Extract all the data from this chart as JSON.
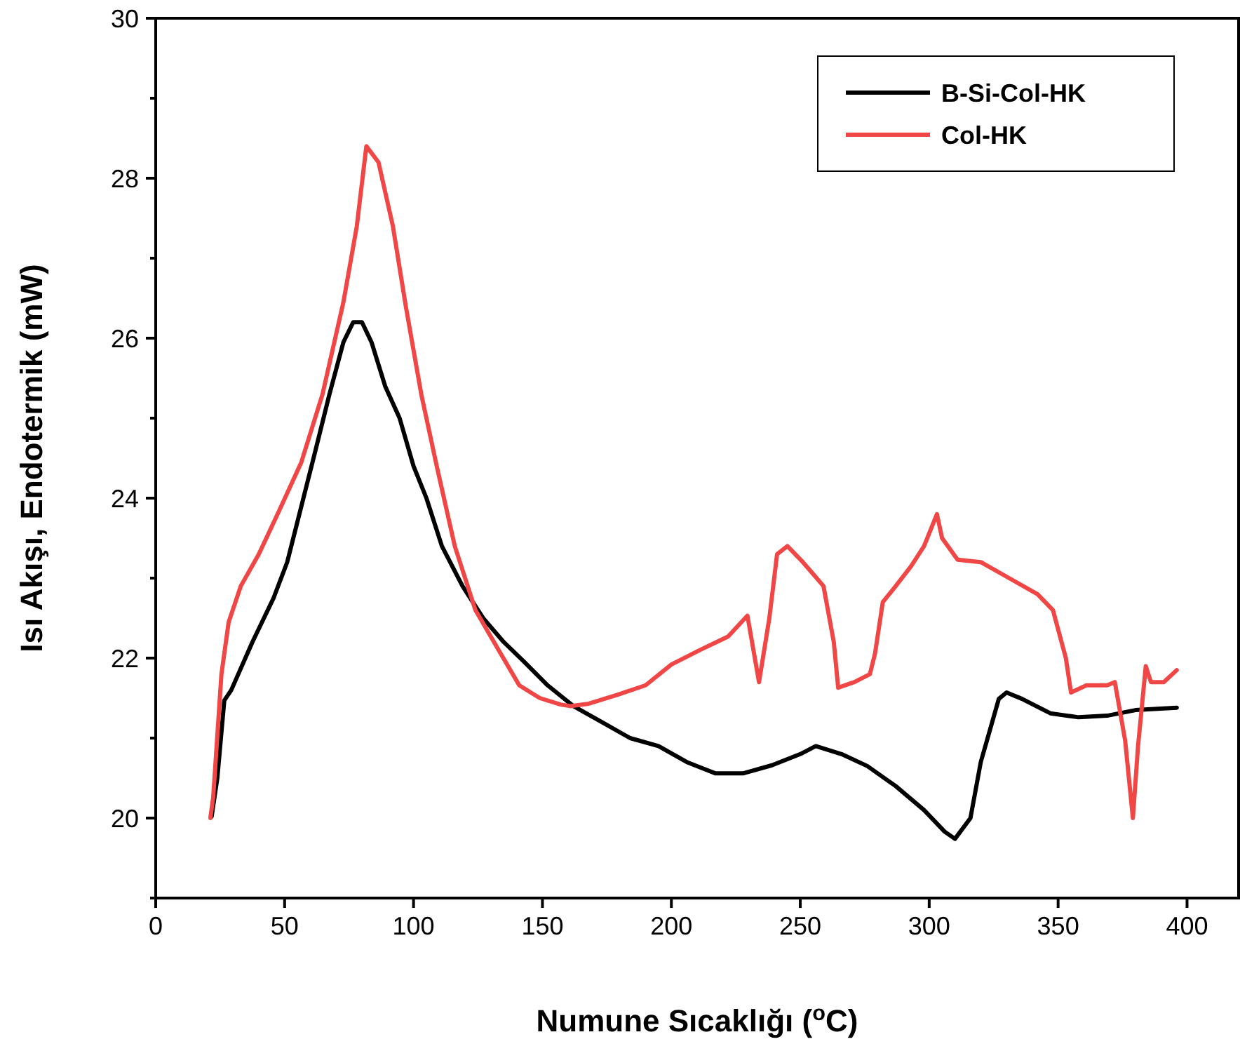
{
  "chart_data": {
    "type": "line",
    "xlabel": "Numune Sıcaklığı ($^{o}$C)",
    "ylabel": "Isı Akışı, Endotermik (mW)",
    "xlim": [
      0,
      420
    ],
    "xticks": [
      0,
      50,
      100,
      150,
      200,
      250,
      300,
      350,
      400
    ],
    "ylim": [
      19,
      30
    ],
    "yticks": [
      {
        "value": 19,
        "label": null
      },
      20,
      {
        "value": 21,
        "label": null
      },
      22,
      {
        "value": 23,
        "label": null
      },
      24,
      {
        "value": 25,
        "label": null
      },
      26,
      {
        "value": 27,
        "label": null
      },
      28,
      {
        "value": 29,
        "label": null
      },
      30
    ],
    "legend": "top right",
    "grid": false,
    "marker": "none",
    "line_style": "solid",
    "series": [
      {
        "name": "B-Si-Col-HK",
        "color": "#000000",
        "x": [
          21.7,
          23.9,
          26.6,
          29.3,
          37.5,
          45.7,
          51,
          56.5,
          62,
          67.4,
          72.8,
          76.6,
          80,
          83.7,
          89,
          94.6,
          100,
          105,
          111,
          119,
          127,
          135,
          143,
          152,
          162,
          173,
          184,
          195,
          206,
          217,
          228,
          239,
          250,
          256,
          266,
          276,
          287,
          298,
          306,
          310,
          316,
          320,
          327,
          330,
          336,
          347,
          358,
          369,
          380,
          396
        ],
        "values": [
          20.02,
          20.5,
          21.47,
          21.6,
          22.2,
          22.75,
          23.2,
          23.9,
          24.6,
          25.3,
          25.95,
          26.2,
          26.2,
          25.95,
          25.4,
          25,
          24.4,
          24,
          23.4,
          22.9,
          22.5,
          22.2,
          21.95,
          21.66,
          21.4,
          21.2,
          21,
          20.9,
          20.7,
          20.56,
          20.56,
          20.66,
          20.8,
          20.9,
          20.8,
          20.65,
          20.4,
          20.1,
          19.83,
          19.74,
          20,
          20.7,
          21.49,
          21.57,
          21.49,
          21.31,
          21.26,
          21.28,
          21.35,
          21.38
        ]
      },
      {
        "name": "Col-HK",
        "color": "#f04646",
        "x": [
          21.2,
          22.3,
          25.5,
          28.3,
          33,
          40,
          48,
          56.5,
          64.7,
          72.8,
          78,
          81.7,
          86.4,
          92,
          97,
          103,
          109,
          116,
          124,
          133,
          141,
          149,
          157,
          160.7,
          168,
          179,
          190,
          200,
          211,
          222,
          229.5,
          234,
          238,
          241,
          245,
          251,
          255,
          259,
          263,
          264.7,
          271,
          277,
          279,
          282,
          287,
          293,
          298,
          303,
          305,
          311,
          320,
          331,
          342,
          348,
          353,
          355,
          361,
          369,
          372,
          376,
          379,
          381,
          384,
          386,
          391,
          396
        ],
        "values": [
          20,
          20.26,
          21.8,
          22.45,
          22.9,
          23.3,
          23.85,
          24.45,
          25.3,
          26.45,
          27.4,
          28.4,
          28.2,
          27.4,
          26.4,
          25.3,
          24.4,
          23.4,
          22.6,
          22.1,
          21.66,
          21.5,
          21.42,
          21.4,
          21.43,
          21.54,
          21.66,
          21.92,
          22.1,
          22.27,
          22.53,
          21.7,
          22.5,
          23.3,
          23.4,
          23.2,
          23.05,
          22.9,
          22.2,
          21.63,
          21.7,
          21.8,
          22.06,
          22.7,
          22.9,
          23.15,
          23.4,
          23.8,
          23.5,
          23.23,
          23.2,
          23,
          22.8,
          22.6,
          22,
          21.57,
          21.66,
          21.66,
          21.7,
          20.97,
          20,
          20.9,
          21.9,
          21.7,
          21.7,
          21.85
        ]
      }
    ]
  }
}
